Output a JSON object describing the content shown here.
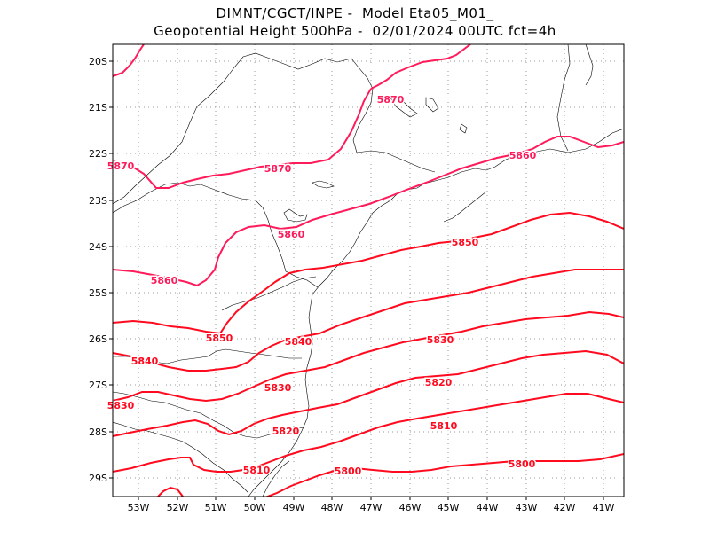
{
  "title": {
    "line1": "DIMNT/CGCT/INPE -  Model Eta05_M01_",
    "line2": "Geopotential Height 500hPa -  02/01/2024 00UTC fct=4h"
  },
  "axes": {
    "lat_labels": [
      "20S",
      "21S",
      "22S",
      "23S",
      "24S",
      "25S",
      "26S",
      "27S",
      "28S",
      "29S"
    ],
    "lon_labels": [
      "53W",
      "52W",
      "51W",
      "50W",
      "49W",
      "48W",
      "47W",
      "46W",
      "45W",
      "44W",
      "43W",
      "42W",
      "41W"
    ]
  },
  "colors": {
    "contour_5870": "#ff1a5a",
    "contour_5860": "#ff1a5a",
    "contour_other": "#ff0a1e",
    "coastline": "#000000",
    "grid": "#999999"
  },
  "contour_labels": [
    {
      "id": "c5870a",
      "text": "5870",
      "color": "#ff1a5a"
    },
    {
      "id": "c5870b",
      "text": "5870",
      "color": "#ff1a5a"
    },
    {
      "id": "c5870c",
      "text": "5870",
      "color": "#ff1a5a"
    },
    {
      "id": "c5860a",
      "text": "5860",
      "color": "#ff1a5a"
    },
    {
      "id": "c5860b",
      "text": "5860",
      "color": "#ff1a5a"
    },
    {
      "id": "c5860c",
      "text": "5860",
      "color": "#ff1a5a"
    },
    {
      "id": "c5850a",
      "text": "5850",
      "color": "#ff0a1e"
    },
    {
      "id": "c5850b",
      "text": "5850",
      "color": "#ff0a1e"
    },
    {
      "id": "c5840a",
      "text": "5840",
      "color": "#ff0a1e"
    },
    {
      "id": "c5840b",
      "text": "5840",
      "color": "#ff0a1e"
    },
    {
      "id": "c5830a",
      "text": "5830",
      "color": "#ff0a1e"
    },
    {
      "id": "c5830b",
      "text": "5830",
      "color": "#ff0a1e"
    },
    {
      "id": "c5830c",
      "text": "5830",
      "color": "#ff0a1e"
    },
    {
      "id": "c5820a",
      "text": "5820",
      "color": "#ff0a1e"
    },
    {
      "id": "c5820b",
      "text": "5820",
      "color": "#ff0a1e"
    },
    {
      "id": "c5810a",
      "text": "5810",
      "color": "#ff0a1e"
    },
    {
      "id": "c5810b",
      "text": "5810",
      "color": "#ff0a1e"
    },
    {
      "id": "c5800a",
      "text": "5800",
      "color": "#ff0a1e"
    },
    {
      "id": "c5800b",
      "text": "5800",
      "color": "#ff0a1e"
    }
  ]
}
